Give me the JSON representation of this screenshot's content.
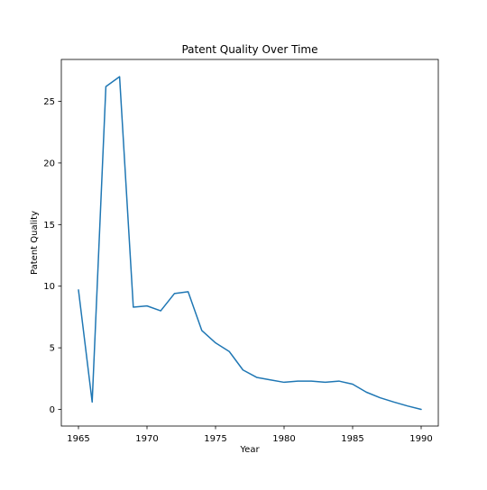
{
  "chart_data": {
    "type": "line",
    "title": "Patent Quality Over Time",
    "xlabel": "Year",
    "ylabel": "Patent Quality",
    "xlim": [
      1963.75,
      1991.25
    ],
    "ylim": [
      -1.35,
      28.4
    ],
    "xticks": [
      1965,
      1970,
      1975,
      1980,
      1985,
      1990
    ],
    "yticks": [
      0,
      5,
      10,
      15,
      20,
      25
    ],
    "grid": false,
    "legend": "none",
    "series": [
      {
        "color": "#1f77b4",
        "x": [
          1965,
          1966,
          1967,
          1968,
          1969,
          1970,
          1971,
          1972,
          1973,
          1974,
          1975,
          1976,
          1977,
          1978,
          1979,
          1980,
          1981,
          1982,
          1983,
          1984,
          1985,
          1986,
          1987,
          1988,
          1989,
          1990
        ],
        "y": [
          9.7,
          0.6,
          26.2,
          27.0,
          8.3,
          8.4,
          8.0,
          9.4,
          9.55,
          6.4,
          5.4,
          4.7,
          3.2,
          2.6,
          2.4,
          2.2,
          2.3,
          2.3,
          2.2,
          2.3,
          2.05,
          1.4,
          0.95,
          0.6,
          0.28,
          0.0
        ]
      }
    ]
  }
}
